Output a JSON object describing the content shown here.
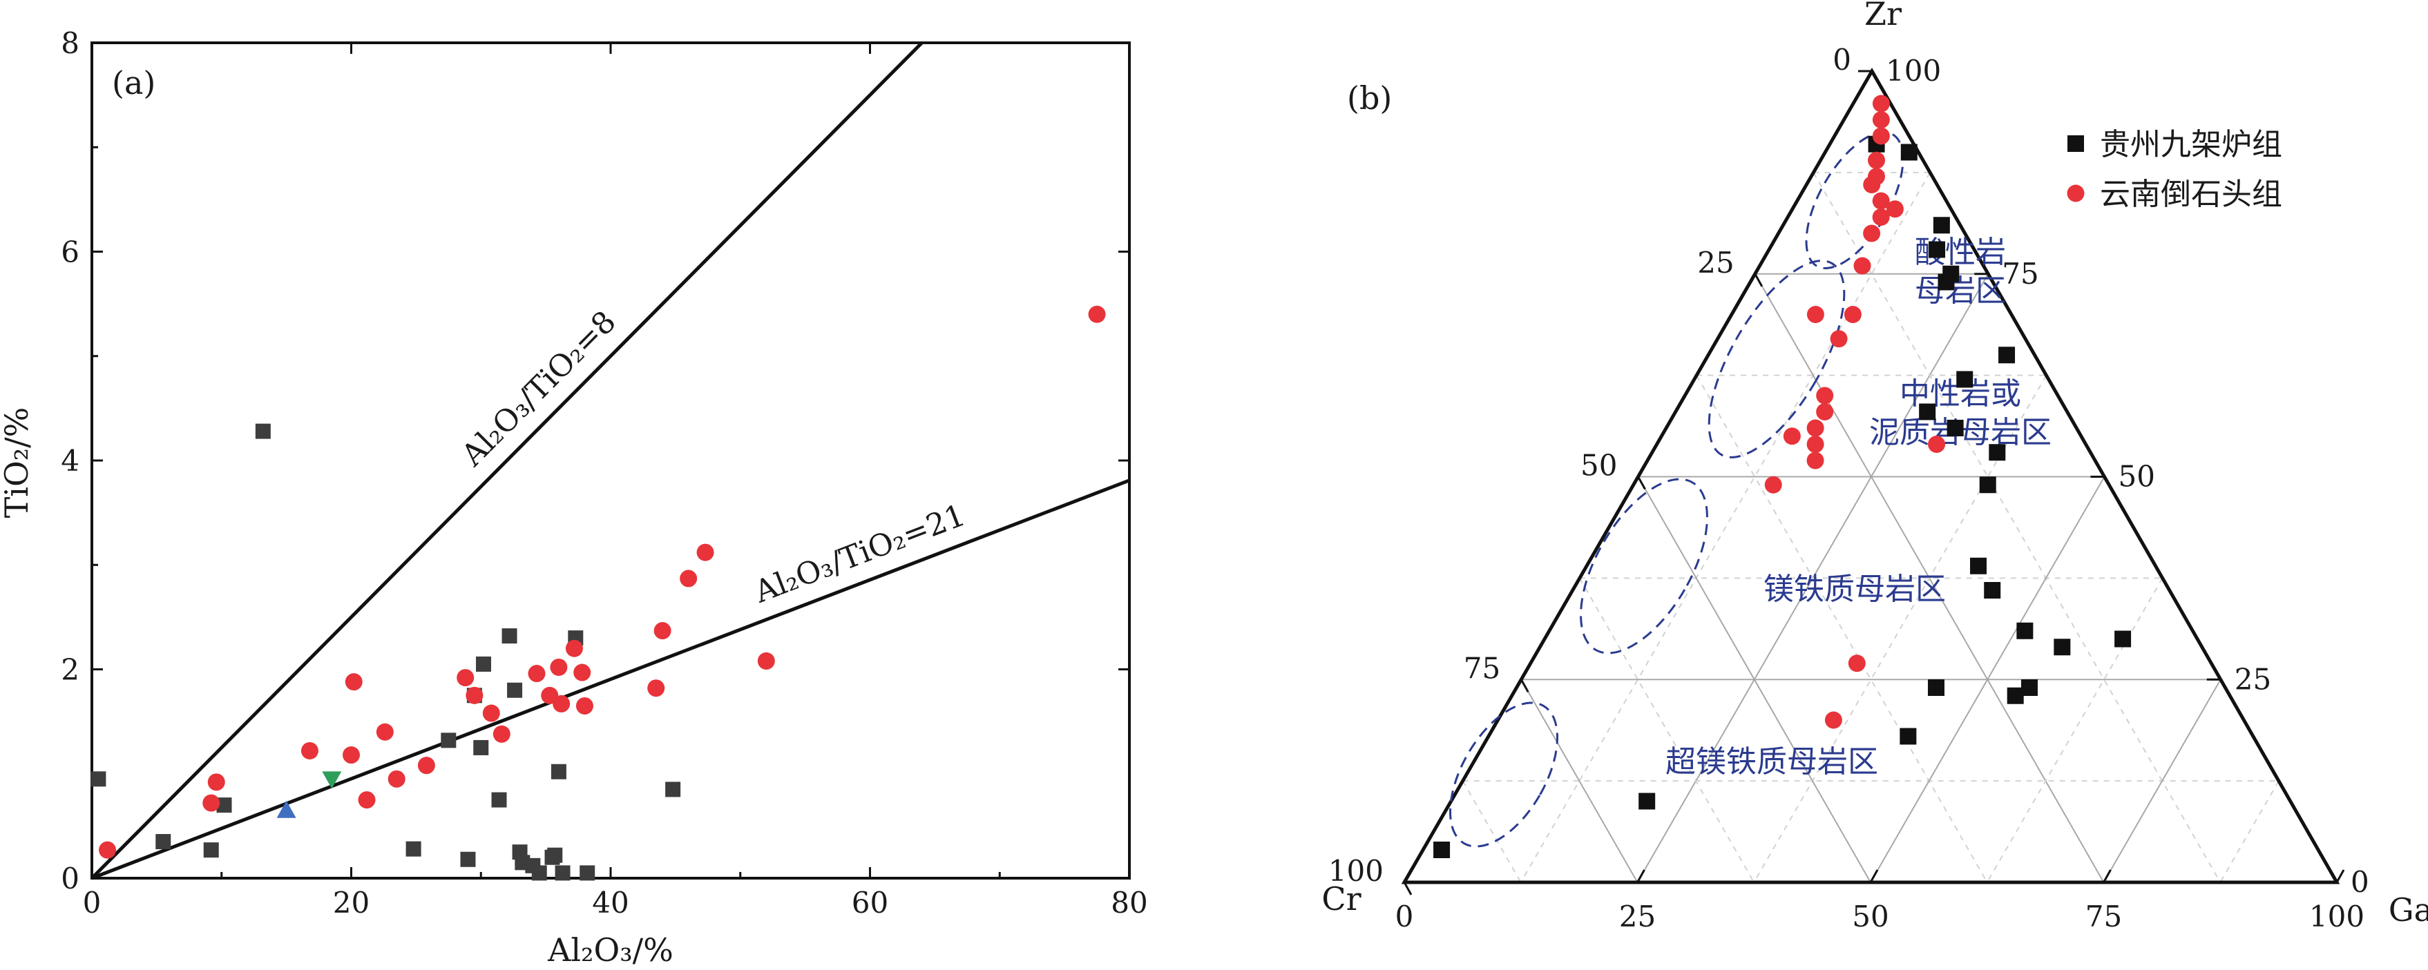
{
  "chart_data": [
    {
      "type": "scatter",
      "panel_label": "(a)",
      "xlabel": "Al₂O₃/%",
      "ylabel": "TiO₂/%",
      "xlim": [
        0,
        80
      ],
      "ylim": [
        0,
        8
      ],
      "x_ticks": [
        "0",
        "20",
        "40",
        "60",
        "80"
      ],
      "y_ticks": [
        "0",
        "2",
        "4",
        "6",
        "8"
      ],
      "reference_lines": [
        {
          "label": "Al₂O₃/TiO₂=8",
          "ratio": 8
        },
        {
          "label": "Al₂O₃/TiO₂=21",
          "ratio": 21
        }
      ],
      "colors": {
        "square": "#3d3d3d",
        "circle": "#e8333a",
        "triangle_up": "#3f6fbf",
        "triangle_down": "#2e9e5b"
      },
      "series": [
        {
          "marker": "square",
          "points": [
            [
              0.5,
              0.95
            ],
            [
              5.5,
              0.35
            ],
            [
              9.2,
              0.27
            ],
            [
              10.2,
              0.7
            ],
            [
              13.2,
              4.28
            ],
            [
              24.8,
              0.28
            ],
            [
              27.5,
              1.32
            ],
            [
              29,
              0.18
            ],
            [
              29.5,
              1.75
            ],
            [
              30,
              1.25
            ],
            [
              30.2,
              2.05
            ],
            [
              31.4,
              0.75
            ],
            [
              32.2,
              2.32
            ],
            [
              32.6,
              1.8
            ],
            [
              33,
              0.25
            ],
            [
              33.2,
              0.15
            ],
            [
              34,
              0.12
            ],
            [
              34.5,
              0.05
            ],
            [
              35.5,
              0.2
            ],
            [
              35.7,
              0.22
            ],
            [
              36,
              1.02
            ],
            [
              36.3,
              0.05
            ],
            [
              37.3,
              2.3
            ],
            [
              38.2,
              0.05
            ],
            [
              44.8,
              0.85
            ]
          ]
        },
        {
          "marker": "circle",
          "points": [
            [
              1.2,
              0.27
            ],
            [
              9.2,
              0.72
            ],
            [
              9.6,
              0.92
            ],
            [
              16.8,
              1.22
            ],
            [
              20,
              1.18
            ],
            [
              20.2,
              1.88
            ],
            [
              21.2,
              0.75
            ],
            [
              22.6,
              1.4
            ],
            [
              23.5,
              0.95
            ],
            [
              25.8,
              1.08
            ],
            [
              28.8,
              1.92
            ],
            [
              29.5,
              1.75
            ],
            [
              30.8,
              1.58
            ],
            [
              31.6,
              1.38
            ],
            [
              34.3,
              1.96
            ],
            [
              35.3,
              1.75
            ],
            [
              36,
              2.02
            ],
            [
              36.2,
              1.67
            ],
            [
              37.2,
              2.2
            ],
            [
              37.8,
              1.97
            ],
            [
              38,
              1.65
            ],
            [
              43.5,
              1.82
            ],
            [
              44,
              2.37
            ],
            [
              46,
              2.87
            ],
            [
              47.3,
              3.12
            ],
            [
              52,
              2.08
            ],
            [
              77.5,
              5.4
            ]
          ]
        },
        {
          "marker": "triangle_up",
          "points": [
            [
              15,
              0.65
            ]
          ]
        },
        {
          "marker": "triangle_down",
          "points": [
            [
              18.5,
              0.95
            ]
          ]
        }
      ]
    },
    {
      "type": "ternary",
      "panel_label": "(b)",
      "axes": {
        "top": "Zr",
        "left": "Cr",
        "right": "Ga"
      },
      "ticks": [
        "0",
        "25",
        "50",
        "75",
        "100"
      ],
      "legend": {
        "placement": "top-right",
        "entries": [
          {
            "name": "贵州九架炉组",
            "marker": "square",
            "color": "#111111"
          },
          {
            "name": "云南倒石头组",
            "marker": "circle",
            "color": "#e8333a"
          }
        ]
      },
      "region_color": "#2b3b8f",
      "regions": [
        {
          "lines": [
            "酸性岩",
            "母岩区"
          ],
          "center": [
            0.87,
            0.04,
            0.09
          ]
        },
        {
          "lines": [
            "中性岩或",
            "泥质岩母岩区"
          ],
          "center": [
            0.63,
            0.07,
            0.3
          ]
        },
        {
          "lines": [
            "镁铁质母岩区"
          ],
          "center": [
            0.32,
            0.2,
            0.48
          ]
        },
        {
          "lines": [
            "超镁铁质母岩区"
          ],
          "center": [
            0.12,
            0.3,
            0.58
          ]
        }
      ],
      "series": [
        {
          "name": "贵州九架炉组",
          "marker": "square",
          "points": [
            [
              0.91,
              0.04,
              0.05
            ],
            [
              0.9,
              0.01,
              0.09
            ],
            [
              0.81,
              0.02,
              0.17
            ],
            [
              0.78,
              0.04,
              0.18
            ],
            [
              0.75,
              0.04,
              0.21
            ],
            [
              0.74,
              0.05,
              0.21
            ],
            [
              0.65,
              0.03,
              0.32
            ],
            [
              0.62,
              0.09,
              0.29
            ],
            [
              0.58,
              0.15,
              0.27
            ],
            [
              0.56,
              0.13,
              0.31
            ],
            [
              0.53,
              0.1,
              0.37
            ],
            [
              0.49,
              0.13,
              0.38
            ],
            [
              0.39,
              0.19,
              0.42
            ],
            [
              0.36,
              0.19,
              0.45
            ],
            [
              0.31,
              0.18,
              0.51
            ],
            [
              0.3,
              0.08,
              0.62
            ],
            [
              0.29,
              0.15,
              0.56
            ],
            [
              0.24,
              0.21,
              0.55
            ],
            [
              0.23,
              0.23,
              0.54
            ],
            [
              0.24,
              0.31,
              0.45
            ],
            [
              0.18,
              0.37,
              0.45
            ],
            [
              0.1,
              0.69,
              0.21
            ],
            [
              0.04,
              0.94,
              0.02
            ]
          ]
        },
        {
          "name": "云南倒石头组",
          "marker": "circle",
          "points": [
            [
              0.96,
              0.01,
              0.03
            ],
            [
              0.94,
              0.02,
              0.04
            ],
            [
              0.92,
              0.03,
              0.05
            ],
            [
              0.89,
              0.05,
              0.06
            ],
            [
              0.87,
              0.06,
              0.07
            ],
            [
              0.86,
              0.07,
              0.07
            ],
            [
              0.84,
              0.07,
              0.09
            ],
            [
              0.83,
              0.06,
              0.11
            ],
            [
              0.82,
              0.08,
              0.1
            ],
            [
              0.8,
              0.1,
              0.1
            ],
            [
              0.76,
              0.13,
              0.11
            ],
            [
              0.7,
              0.21,
              0.09
            ],
            [
              0.7,
              0.17,
              0.13
            ],
            [
              0.67,
              0.2,
              0.13
            ],
            [
              0.6,
              0.25,
              0.15
            ],
            [
              0.58,
              0.26,
              0.16
            ],
            [
              0.56,
              0.28,
              0.16
            ],
            [
              0.54,
              0.29,
              0.17
            ],
            [
              0.52,
              0.3,
              0.18
            ],
            [
              0.55,
              0.31,
              0.14
            ],
            [
              0.49,
              0.36,
              0.15
            ],
            [
              0.54,
              0.16,
              0.3
            ],
            [
              0.27,
              0.38,
              0.35
            ],
            [
              0.2,
              0.44,
              0.36
            ]
          ]
        }
      ]
    }
  ]
}
